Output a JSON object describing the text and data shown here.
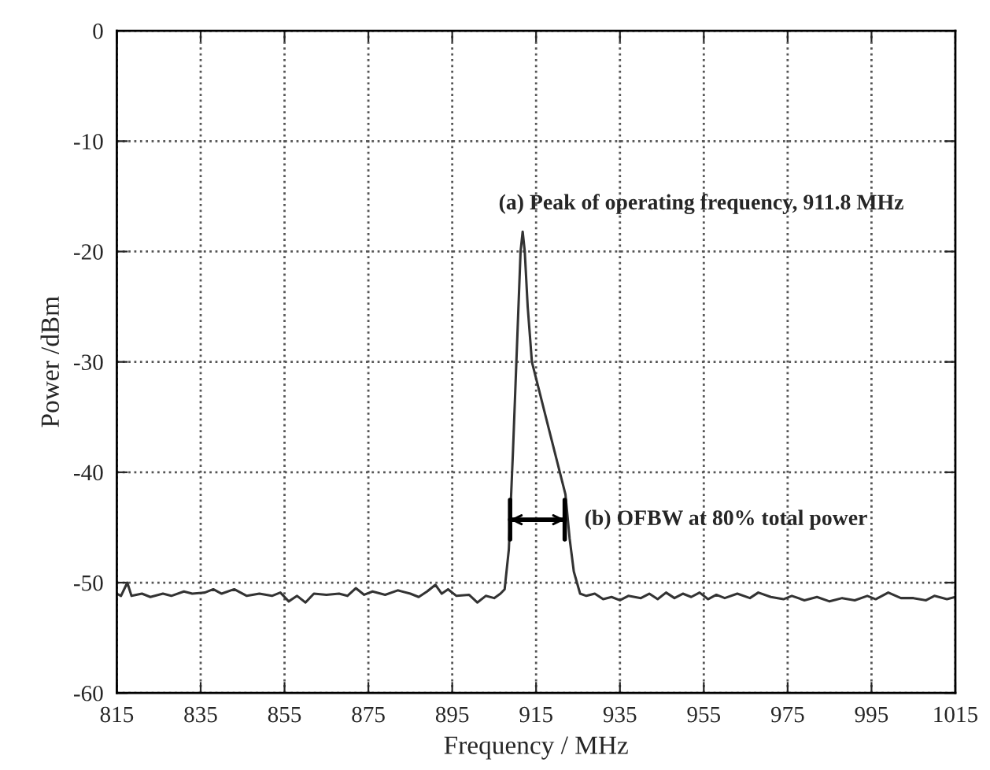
{
  "chart_data": {
    "type": "line",
    "xlabel": "Frequency / MHz",
    "ylabel": "Power /dBm",
    "xlim": [
      815,
      1015
    ],
    "xticks": [
      815,
      835,
      855,
      875,
      895,
      915,
      935,
      955,
      975,
      995,
      1015
    ],
    "ylim": [
      -60,
      0
    ],
    "yticks": [
      -60,
      -50,
      -40,
      -30,
      -20,
      -10,
      0
    ],
    "grid": true,
    "line_style": "solid",
    "marker": "none",
    "series": [
      {
        "color": "#333333",
        "x": [
          815,
          816,
          817.5,
          818.5,
          821,
          823,
          826,
          828,
          831,
          833,
          836,
          838,
          840,
          843,
          846,
          849,
          852,
          854,
          856,
          858,
          860,
          862,
          865,
          868,
          870,
          872,
          874,
          876,
          879,
          882,
          885,
          887,
          889,
          891,
          892.5,
          894,
          896,
          899,
          901,
          903,
          905,
          906.5,
          907.5,
          908.5,
          909.5,
          910.5,
          911.3,
          911.8,
          912.3,
          913,
          914,
          916,
          918,
          920,
          922,
          923,
          924,
          925.5,
          927,
          929,
          931,
          933,
          935,
          937,
          940,
          942,
          944,
          946,
          948,
          950,
          952,
          954,
          956,
          958,
          960,
          963,
          966,
          968,
          971,
          974,
          976,
          979,
          982,
          985,
          988,
          991,
          994,
          996,
          999,
          1002,
          1005,
          1008,
          1010,
          1013,
          1015
        ],
        "values": [
          -51.0,
          -51.2,
          -50.0,
          -51.2,
          -51.0,
          -51.3,
          -51.0,
          -51.2,
          -50.8,
          -51.0,
          -50.9,
          -50.6,
          -51.0,
          -50.6,
          -51.2,
          -51.0,
          -51.2,
          -50.9,
          -51.7,
          -51.2,
          -51.8,
          -51.0,
          -51.1,
          -51.0,
          -51.2,
          -50.5,
          -51.1,
          -50.8,
          -51.1,
          -50.7,
          -51.0,
          -51.3,
          -50.8,
          -50.2,
          -51.0,
          -50.6,
          -51.2,
          -51.1,
          -51.8,
          -51.2,
          -51.4,
          -51.0,
          -50.6,
          -47,
          -38,
          -28,
          -20,
          -18.2,
          -20,
          -25,
          -30,
          -33,
          -36,
          -39,
          -42,
          -46,
          -49,
          -51.0,
          -51.2,
          -51.0,
          -51.5,
          -51.3,
          -51.6,
          -51.2,
          -51.4,
          -51.0,
          -51.5,
          -50.9,
          -51.4,
          -51.0,
          -51.3,
          -50.9,
          -51.5,
          -51.1,
          -51.4,
          -51.0,
          -51.4,
          -50.9,
          -51.3,
          -51.5,
          -51.2,
          -51.6,
          -51.3,
          -51.7,
          -51.4,
          -51.6,
          -51.2,
          -51.5,
          -50.9,
          -51.4,
          -51.4,
          -51.6,
          -51.2,
          -51.5,
          -51.3
        ]
      }
    ],
    "annotations": [
      {
        "text": "(a) Peak of operating frequency, 911.8 MHz",
        "x": 911.8,
        "y": -18.2
      },
      {
        "text": "(b) OFBW at 80% total power",
        "x": 908.8,
        "y": -44.3
      }
    ]
  }
}
